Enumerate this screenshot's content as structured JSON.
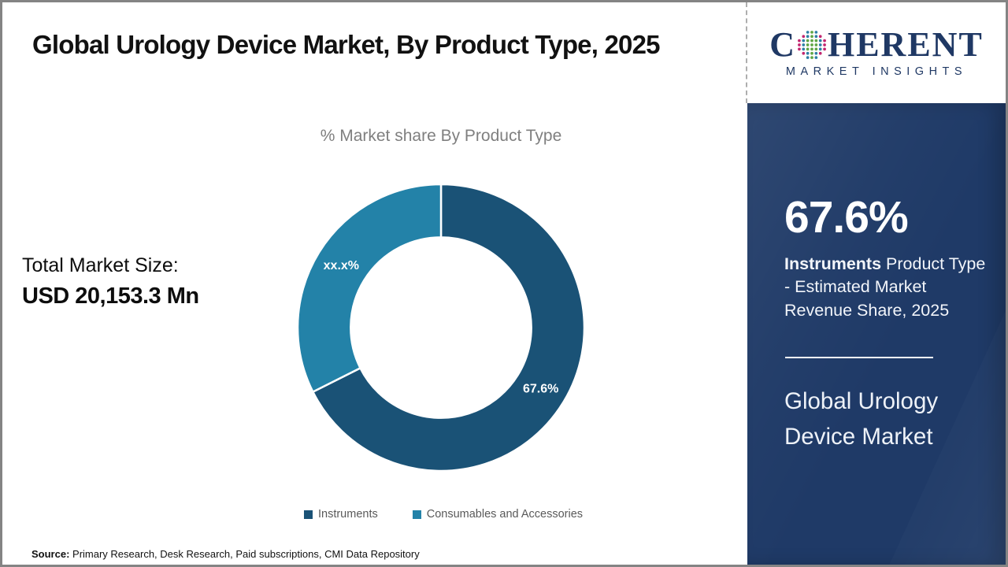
{
  "header": {
    "title": "Global Urology Device Market, By Product Type, 2025"
  },
  "logo": {
    "word_start": "C",
    "word_end": "HERENT",
    "subtext": "MARKET INSIGHTS",
    "text_color": "#1f3864",
    "globe_dot_colors": {
      "green": "#5fa544",
      "teal": "#2e7fa6",
      "pink": "#c2256f"
    }
  },
  "chart_data": {
    "type": "pie",
    "variant": "donut",
    "title": "% Market share By Product Type",
    "slices": [
      {
        "label": "Instruments",
        "value": 67.6,
        "display_value": "67.6%",
        "color": "#1a5276"
      },
      {
        "label": "Consumables and Accessories",
        "value": 32.4,
        "display_value": "xx.x%",
        "color": "#2382a8"
      }
    ],
    "start_angle_deg": 0,
    "direction": "clockwise",
    "inner_radius_ratio": 0.63,
    "legend_position": "bottom",
    "separator_color": "#ffffff"
  },
  "stats": {
    "total_label": "Total Market Size:",
    "total_value": "USD 20,153.3 Mn"
  },
  "panel": {
    "background": "#1f3a67",
    "pct": "67.6%",
    "desc_bold": "Instruments",
    "desc_rest": "  Product Type - Estimated Market Revenue Share, 2025",
    "market_title": "Global Urology Device Market"
  },
  "source": {
    "label": "Source:",
    "text": " Primary Research, Desk Research, Paid subscriptions, CMI Data Repository"
  }
}
